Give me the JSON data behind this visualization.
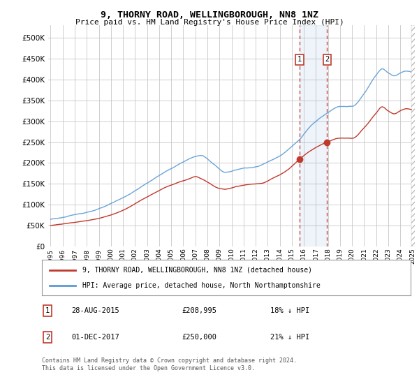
{
  "title": "9, THORNY ROAD, WELLINGBOROUGH, NN8 1NZ",
  "subtitle": "Price paid vs. HM Land Registry's House Price Index (HPI)",
  "legend_line1": "9, THORNY ROAD, WELLINGBOROUGH, NN8 1NZ (detached house)",
  "legend_line2": "HPI: Average price, detached house, North Northamptonshire",
  "annotation1_date": "28-AUG-2015",
  "annotation1_price": 208995,
  "annotation1_label": "18% ↓ HPI",
  "annotation1_year": 2015.65,
  "annotation2_date": "01-DEC-2017",
  "annotation2_price": 250000,
  "annotation2_label": "21% ↓ HPI",
  "annotation2_year": 2017.92,
  "footer": "Contains HM Land Registry data © Crown copyright and database right 2024.\nThis data is licensed under the Open Government Licence v3.0.",
  "hpi_color": "#5b9bd5",
  "price_color": "#c0392b",
  "bg_color": "#ffffff",
  "grid_color": "#c8c8c8",
  "ylim": [
    0,
    530000
  ],
  "yticks": [
    0,
    50000,
    100000,
    150000,
    200000,
    250000,
    300000,
    350000,
    400000,
    450000,
    500000
  ],
  "xstart": 1995,
  "xend": 2025
}
